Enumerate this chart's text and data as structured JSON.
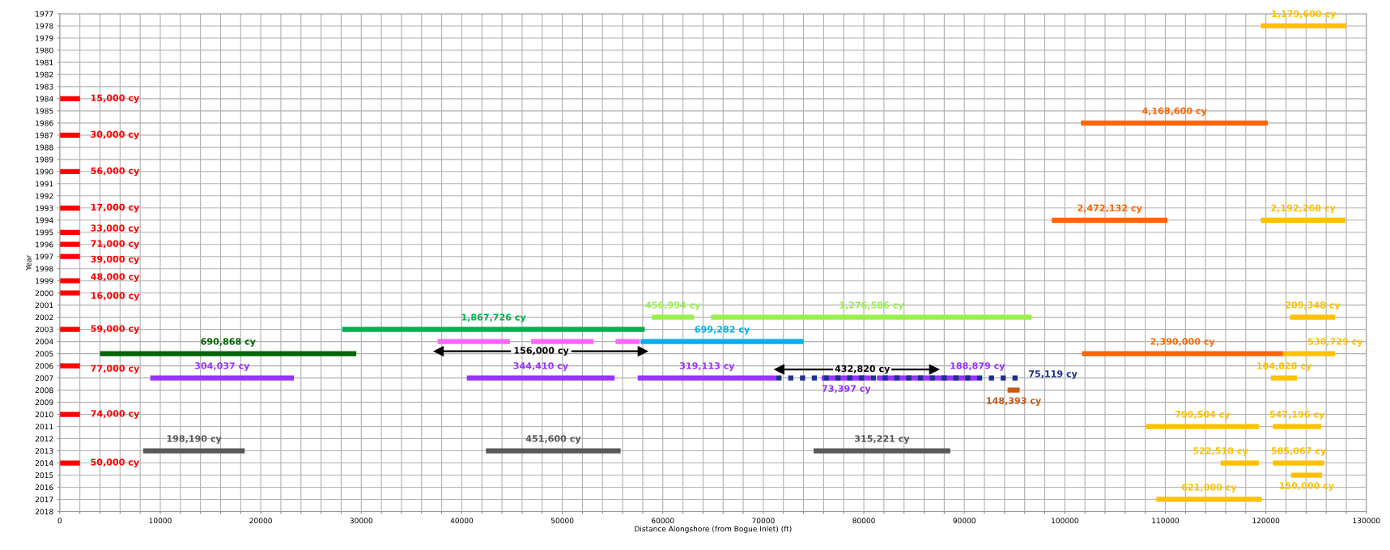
{
  "chart_data": {
    "type": "line",
    "xlabel": "Distance Alongshore (from Bogue Inlet) (ft)",
    "ylabel": "Year",
    "xlim": [
      0,
      130000
    ],
    "ylim": [
      2018,
      1977
    ],
    "xticks": [
      0,
      {
        "value": 2000,
        "label": null
      },
      {
        "value": 4000,
        "label": null
      },
      {
        "value": 6000,
        "label": null
      },
      {
        "value": 8000,
        "label": null
      },
      10000,
      {
        "value": 12000,
        "label": null
      },
      {
        "value": 14000,
        "label": null
      },
      {
        "value": 16000,
        "label": null
      },
      {
        "value": 18000,
        "label": null
      },
      20000,
      {
        "value": 22000,
        "label": null
      },
      {
        "value": 24000,
        "label": null
      },
      {
        "value": 26000,
        "label": null
      },
      {
        "value": 28000,
        "label": null
      },
      30000,
      {
        "value": 32000,
        "label": null
      },
      {
        "value": 34000,
        "label": null
      },
      {
        "value": 36000,
        "label": null
      },
      {
        "value": 38000,
        "label": null
      },
      40000,
      {
        "value": 42000,
        "label": null
      },
      {
        "value": 44000,
        "label": null
      },
      {
        "value": 46000,
        "label": null
      },
      {
        "value": 48000,
        "label": null
      },
      50000,
      {
        "value": 52000,
        "label": null
      },
      {
        "value": 54000,
        "label": null
      },
      {
        "value": 56000,
        "label": null
      },
      {
        "value": 58000,
        "label": null
      },
      60000,
      {
        "value": 62000,
        "label": null
      },
      {
        "value": 64000,
        "label": null
      },
      {
        "value": 66000,
        "label": null
      },
      {
        "value": 68000,
        "label": null
      },
      70000,
      {
        "value": 72000,
        "label": null
      },
      {
        "value": 74000,
        "label": null
      },
      {
        "value": 76000,
        "label": null
      },
      {
        "value": 78000,
        "label": null
      },
      80000,
      {
        "value": 82000,
        "label": null
      },
      {
        "value": 84000,
        "label": null
      },
      {
        "value": 86000,
        "label": null
      },
      {
        "value": 88000,
        "label": null
      },
      90000,
      {
        "value": 92000,
        "label": null
      },
      {
        "value": 94000,
        "label": null
      },
      {
        "value": 96000,
        "label": null
      },
      {
        "value": 98000,
        "label": null
      },
      100000,
      {
        "value": 102000,
        "label": null
      },
      {
        "value": 104000,
        "label": null
      },
      {
        "value": 106000,
        "label": null
      },
      {
        "value": 108000,
        "label": null
      },
      110000,
      {
        "value": 112000,
        "label": null
      },
      {
        "value": 114000,
        "label": null
      },
      {
        "value": 116000,
        "label": null
      },
      {
        "value": 118000,
        "label": null
      },
      120000,
      {
        "value": 122000,
        "label": null
      },
      {
        "value": 124000,
        "label": null
      },
      {
        "value": 126000,
        "label": null
      },
      {
        "value": 128000,
        "label": null
      },
      130000
    ],
    "yticks": [
      1977,
      1978,
      1979,
      1980,
      1981,
      1982,
      1983,
      1984,
      1985,
      1986,
      1987,
      1988,
      1989,
      1990,
      1991,
      1992,
      1993,
      1994,
      1995,
      1996,
      1997,
      1998,
      1999,
      2000,
      2001,
      2002,
      2003,
      2004,
      2005,
      2006,
      2007,
      2008,
      2009,
      2010,
      2011,
      2012,
      2013,
      2014,
      2015,
      2016,
      2017,
      2018
    ],
    "grid": true,
    "line_style": "solid",
    "series": [
      {
        "name": "15,000 cy",
        "color": "#ff0000",
        "x": [
          0,
          2000
        ],
        "values": [
          1984,
          1984
        ]
      },
      {
        "name": "30,000 cy",
        "color": "#ff0000",
        "x": [
          0,
          2000
        ],
        "values": [
          1987,
          1987
        ]
      },
      {
        "name": "56,000 cy",
        "color": "#ff0000",
        "x": [
          0,
          2000
        ],
        "values": [
          1990,
          1990
        ]
      },
      {
        "name": "17,000 cy",
        "color": "#ff0000",
        "x": [
          0,
          2000
        ],
        "values": [
          1993,
          1993
        ]
      },
      {
        "name": "33,000 cy",
        "color": "#ff0000",
        "x": [
          0,
          2000
        ],
        "values": [
          1995,
          1995
        ]
      },
      {
        "name": "71,000 cy",
        "color": "#ff0000",
        "x": [
          0,
          2000
        ],
        "values": [
          1996,
          1996
        ]
      },
      {
        "name": "39,000 cy",
        "color": "#ff0000",
        "x": [
          0,
          2000
        ],
        "values": [
          1997,
          1997
        ]
      },
      {
        "name": "48,000 cy",
        "color": "#ff0000",
        "x": [
          0,
          2000
        ],
        "values": [
          1999,
          1999
        ]
      },
      {
        "name": "16,000 cy",
        "color": "#ff0000",
        "x": [
          0,
          2000
        ],
        "values": [
          2000,
          2000
        ]
      },
      {
        "name": "59,000 cy",
        "color": "#ff0000",
        "x": [
          0,
          2000
        ],
        "values": [
          2003,
          2003
        ]
      },
      {
        "name": "77,000 cy",
        "color": "#ff0000",
        "x": [
          0,
          2000
        ],
        "values": [
          2006,
          2006
        ]
      },
      {
        "name": "74,000 cy",
        "color": "#ff0000",
        "x": [
          0,
          2000
        ],
        "values": [
          2010,
          2010
        ]
      },
      {
        "name": "50,000 cy",
        "color": "#ff0000",
        "x": [
          0,
          2000
        ],
        "values": [
          2014,
          2014
        ]
      },
      {
        "name": "156,000 cy",
        "color": "#000000",
        "x": [
          37700,
          44900,
          47900,
          50900,
          58000
        ],
        "values": [
          2004.8,
          2004.8,
          null,
          2004.8,
          2004.8
        ],
        "marker": "triangle"
      },
      {
        "name": "432,820 cy",
        "color": "#000000",
        "x": [
          71600,
          76950,
          79850,
          82750,
          87000
        ],
        "values": [
          2006.3,
          2006.3,
          null,
          2006.3,
          2006.3
        ],
        "marker": "triangle"
      },
      {
        "name": "1,179,600 cy",
        "color": "#ffc000",
        "x": [
          119500,
          128000
        ],
        "values": [
          1978,
          1978
        ]
      },
      {
        "name": "2,192,268 cy",
        "color": "#ffc000",
        "x": [
          119500,
          127900
        ],
        "values": [
          1994,
          1994
        ]
      },
      {
        "name": "209,348 cy",
        "color": "#ffc000",
        "x": [
          122400,
          126900
        ],
        "values": [
          2002,
          2002
        ]
      },
      {
        "name": "530,729 cy",
        "color": "#ffc000",
        "x": [
          121700,
          126900
        ],
        "values": [
          2005,
          2005
        ]
      },
      {
        "name": "184,828 cy",
        "color": "#ffc000",
        "x": [
          120500,
          123100
        ],
        "values": [
          2007,
          2007
        ]
      },
      {
        "name": "799,504 cy",
        "color": "#ffc000",
        "x": [
          108100,
          119300
        ],
        "values": [
          2011,
          2011
        ]
      },
      {
        "name": "547,196 cy",
        "color": "#ffc000",
        "x": [
          120700,
          125500
        ],
        "values": [
          2011,
          2011
        ]
      },
      {
        "name": "522,518 cy",
        "color": "#ffc000",
        "x": [
          115500,
          119300
        ],
        "values": [
          2014,
          2014
        ]
      },
      {
        "name": "585,067 cy",
        "color": "#ffc000",
        "x": [
          120700,
          125800
        ],
        "values": [
          2014,
          2014
        ]
      },
      {
        "name": "150,000 cy",
        "color": "#ffc000",
        "x": [
          122500,
          125600
        ],
        "values": [
          2015,
          2015
        ]
      },
      {
        "name": "621,000 cy",
        "color": "#ffc000",
        "x": [
          109100,
          119600
        ],
        "values": [
          2017,
          2017
        ]
      },
      {
        "name": "4,168,600 cy",
        "color": "#ff6600",
        "x": [
          101600,
          120200
        ],
        "values": [
          1986,
          1986
        ]
      },
      {
        "name": "2,472,132 cy",
        "color": "#ff6600",
        "x": [
          98700,
          110200
        ],
        "values": [
          1994,
          1994
        ]
      },
      {
        "name": "2,390,000 cy",
        "color": "#ff6600",
        "x": [
          101700,
          121700
        ],
        "values": [
          2005,
          2005
        ]
      },
      {
        "name": "456,994 cy",
        "color": "#99f04a",
        "x": [
          58900,
          63100
        ],
        "values": [
          2002,
          2002
        ]
      },
      {
        "name": "1,276,586 cy",
        "color": "#99f04a",
        "x": [
          64800,
          96700
        ],
        "values": [
          2002,
          2002
        ]
      },
      {
        "name": "1,867,726 cy",
        "color": "#00b050",
        "x": [
          28100,
          58200
        ],
        "values": [
          2003,
          2003
        ]
      },
      {
        "color": "#ff66ff",
        "x": [
          37600,
          44800
        ],
        "values": [
          2004,
          2004
        ]
      },
      {
        "color": "#ff66ff",
        "x": [
          46900,
          53100
        ],
        "values": [
          2004,
          2004
        ]
      },
      {
        "color": "#ff66ff",
        "x": [
          55300,
          57700
        ],
        "values": [
          2004,
          2004
        ]
      },
      {
        "name": "699,282 cy",
        "color": "#00b0f0",
        "x": [
          57800,
          74000
        ],
        "values": [
          2004,
          2004
        ]
      },
      {
        "name": "690,868 cy",
        "color": "#006600",
        "x": [
          4000,
          29500
        ],
        "values": [
          2005,
          2005
        ]
      },
      {
        "name": "304,037 cy",
        "color": "#9933ff",
        "x": [
          9000,
          23300
        ],
        "values": [
          2007,
          2007
        ]
      },
      {
        "name": "344,410 cy",
        "color": "#9933ff",
        "x": [
          40500,
          55200
        ],
        "values": [
          2007,
          2007
        ]
      },
      {
        "name": "319,113 cy",
        "color": "#9933ff",
        "x": [
          57500,
          71300
        ],
        "values": [
          2007,
          2007
        ]
      },
      {
        "name": "73,397 cy",
        "color": "#9933ff",
        "x": [
          75800,
          80700
        ],
        "values": [
          2007,
          2007
        ]
      },
      {
        "name": "188,879 cy",
        "color": "#9933ff",
        "x": [
          81300,
          91300
        ],
        "values": [
          2007,
          2007
        ]
      },
      {
        "name": "75,119 cy",
        "color": "#1f2f8f",
        "x": [
          71300,
          95300
        ],
        "values": [
          2007,
          2007
        ],
        "line_style": "dotted"
      },
      {
        "name": "148,393 cy",
        "color": "#c55a11",
        "x": [
          94300,
          95500
        ],
        "values": [
          2008,
          2008
        ]
      },
      {
        "name": "198,190 cy",
        "color": "#595959",
        "x": [
          8300,
          18400
        ],
        "values": [
          2013,
          2013
        ]
      },
      {
        "name": "451,600 cy",
        "color": "#595959",
        "x": [
          42400,
          55800
        ],
        "values": [
          2013,
          2013
        ]
      },
      {
        "name": "315,221 cy",
        "color": "#595959",
        "x": [
          75000,
          88600
        ],
        "values": [
          2013,
          2013
        ]
      }
    ]
  }
}
